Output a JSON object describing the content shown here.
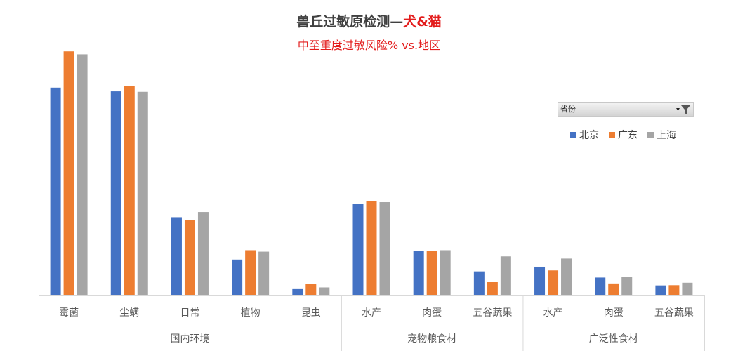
{
  "title": {
    "main_text": "兽丘过敏原检测—",
    "accent_text": "犬&猫",
    "subtitle": "中至重度过敏风险% vs.地区"
  },
  "filter": {
    "label": "省份",
    "icon": "filter-icon"
  },
  "chart_data": {
    "type": "bar",
    "title": "兽丘过敏原检测—犬&猫",
    "subtitle": "中至重度过敏风险% vs.地区",
    "categories": [
      "霉菌",
      "尘螨",
      "日常",
      "植物",
      "昆虫",
      "水产",
      "肉蛋",
      "五谷蔬果",
      "水产",
      "肉蛋",
      "五谷蔬果"
    ],
    "groups": [
      {
        "label": "国内环境",
        "count": 5
      },
      {
        "label": "宠物粮食材",
        "count": 3
      },
      {
        "label": "广泛性食材",
        "count": 3
      }
    ],
    "series": [
      {
        "name": "北京",
        "color": "#4472c4",
        "values": [
          84.1,
          82.6,
          31.5,
          14.3,
          2.6,
          36.9,
          17.8,
          9.5,
          11.4,
          7.0,
          3.8
        ]
      },
      {
        "name": "广东",
        "color": "#ed7d31",
        "values": [
          98.8,
          84.9,
          30.3,
          18.1,
          4.4,
          38.1,
          17.8,
          5.3,
          9.9,
          4.6,
          3.9
        ]
      },
      {
        "name": "上海",
        "color": "#a5a5a5",
        "values": [
          97.6,
          82.4,
          33.6,
          17.5,
          3.0,
          37.6,
          18.1,
          15.6,
          14.7,
          7.3,
          4.9
        ]
      }
    ],
    "ylim": [
      0,
      100
    ],
    "grid": false,
    "legend_position": "right"
  }
}
